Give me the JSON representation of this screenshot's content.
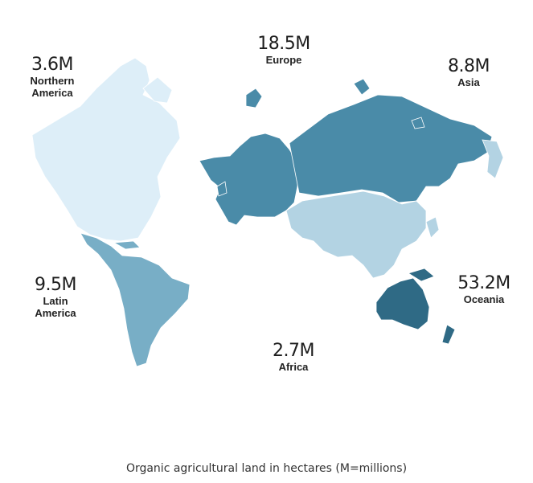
{
  "regions": [
    {
      "key": "northern_america",
      "value": "3.6M",
      "name": "Northern\nAmerica",
      "color": "#ddeef8"
    },
    {
      "key": "europe",
      "value": "18.5M",
      "name": "Europe",
      "color": "#4a8ba8"
    },
    {
      "key": "asia",
      "value": "8.8M",
      "name": "Asia",
      "color": "#b3d3e3"
    },
    {
      "key": "latin_america",
      "value": "9.5M",
      "name": "Latin\nAmerica",
      "color": "#78aec6"
    },
    {
      "key": "oceania",
      "value": "53.2M",
      "name": "Oceania",
      "color": "#2f6a85"
    },
    {
      "key": "africa",
      "value": "2.7M",
      "name": "Africa",
      "color": "#ffffff"
    }
  ],
  "caption": "Organic agricultural land in hectares (M=millions)"
}
